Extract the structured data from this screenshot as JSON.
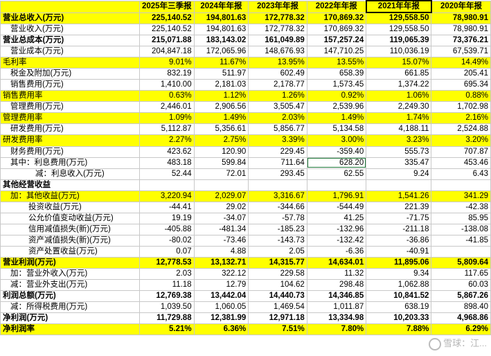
{
  "headers": [
    "",
    "2025年三季报",
    "2024年年报",
    "2023年年报",
    "2022年年报",
    "2021年年报",
    "2020年年报"
  ],
  "rows": [
    {
      "label": "营业总收入(万元)",
      "style": "hl bold",
      "indent": 0,
      "values": [
        "225,140.52",
        "194,801.63",
        "172,778.32",
        "170,869.32",
        "129,558.50",
        "78,980.91"
      ]
    },
    {
      "label": "营业收入(万元)",
      "style": "",
      "indent": 1,
      "values": [
        "225,140.52",
        "194,801.63",
        "172,778.32",
        "170,869.32",
        "129,558.50",
        "78,980.91"
      ]
    },
    {
      "label": "营业总成本(万元)",
      "style": "bold",
      "indent": 0,
      "values": [
        "215,071.88",
        "183,143.02",
        "161,049.89",
        "157,257.24",
        "119,065.39",
        "73,376.21"
      ]
    },
    {
      "label": "营业成本(万元)",
      "style": "",
      "indent": 1,
      "values": [
        "204,847.18",
        "172,065.96",
        "148,676.93",
        "147,710.25",
        "110,036.19",
        "67,539.71"
      ]
    },
    {
      "label": "毛利率",
      "style": "hl",
      "indent": 0,
      "values": [
        "9.01%",
        "11.67%",
        "13.95%",
        "13.55%",
        "15.07%",
        "14.49%"
      ]
    },
    {
      "label": "税金及附加(万元)",
      "style": "",
      "indent": 1,
      "values": [
        "832.19",
        "511.97",
        "602.49",
        "658.39",
        "661.85",
        "205.41"
      ]
    },
    {
      "label": "销售费用(万元)",
      "style": "",
      "indent": 1,
      "values": [
        "1,410.00",
        "2,181.03",
        "2,178.77",
        "1,573.45",
        "1,374.22",
        "695.34"
      ]
    },
    {
      "label": "销售费用率",
      "style": "hl",
      "indent": 0,
      "values": [
        "0.63%",
        "1.12%",
        "1.26%",
        "0.92%",
        "1.06%",
        "0.88%"
      ]
    },
    {
      "label": "管理费用(万元)",
      "style": "",
      "indent": 1,
      "values": [
        "2,446.01",
        "2,906.56",
        "3,505.47",
        "2,539.96",
        "2,249.30",
        "1,702.98"
      ]
    },
    {
      "label": "管理费用率",
      "style": "hl",
      "indent": 0,
      "values": [
        "1.09%",
        "1.49%",
        "2.03%",
        "1.49%",
        "1.74%",
        "2.16%"
      ]
    },
    {
      "label": "研发费用(万元)",
      "style": "",
      "indent": 1,
      "values": [
        "5,112.87",
        "5,356.61",
        "5,856.77",
        "5,134.58",
        "4,188.11",
        "2,524.88"
      ]
    },
    {
      "label": "研发费用率",
      "style": "hl",
      "indent": 0,
      "values": [
        "2.27%",
        "2.75%",
        "3.39%",
        "3.00%",
        "3.23%",
        "3.20%"
      ]
    },
    {
      "label": "财务费用(万元)",
      "style": "",
      "indent": 1,
      "values": [
        "423.62",
        "120.90",
        "229.45",
        "-359.40",
        "555.73",
        "707.87"
      ]
    },
    {
      "label": "其中：利息费用(万元)",
      "style": "",
      "indent": 1,
      "values": [
        "483.18",
        "599.84",
        "711.64",
        "628.20",
        "335.47",
        "453.46"
      ]
    },
    {
      "label": "减：利息收入(万元)",
      "style": "",
      "indent": 4,
      "values": [
        "52.44",
        "72.01",
        "293.45",
        "62.55",
        "9.24",
        "6.43"
      ]
    },
    {
      "label": "其他经营收益",
      "style": "bold",
      "indent": 0,
      "values": [
        "",
        "",
        "",
        "",
        "",
        ""
      ]
    },
    {
      "label": "加：其他收益(万元)",
      "style": "hl",
      "indent": 1,
      "values": [
        "3,220.94",
        "2,029.07",
        "3,316.67",
        "1,796.91",
        "1,541.26",
        "341.29"
      ]
    },
    {
      "label": "投资收益(万元)",
      "style": "",
      "indent": 3,
      "values": [
        "-44.41",
        "29.02",
        "-344.66",
        "-544.49",
        "221.39",
        "-42.38"
      ]
    },
    {
      "label": "公允价值变动收益(万元)",
      "style": "",
      "indent": 3,
      "values": [
        "19.19",
        "-34.07",
        "-57.78",
        "41.25",
        "-71.75",
        "85.95"
      ]
    },
    {
      "label": "信用减值损失(新)(万元)",
      "style": "",
      "indent": 3,
      "values": [
        "-405.88",
        "-481.34",
        "-185.23",
        "-132.96",
        "-211.18",
        "-138.08"
      ]
    },
    {
      "label": "资产减值损失(新)(万元)",
      "style": "",
      "indent": 3,
      "values": [
        "-80.02",
        "-73.46",
        "-143.73",
        "-132.42",
        "-36.86",
        "-41.85"
      ]
    },
    {
      "label": "资产处置收益(万元)",
      "style": "",
      "indent": 3,
      "values": [
        "0.07",
        "4.88",
        "2.05",
        "-6.36",
        "-40.91",
        ""
      ]
    },
    {
      "label": "营业利润(万元)",
      "style": "hl bold",
      "indent": 0,
      "values": [
        "12,778.53",
        "13,132.71",
        "14,315.77",
        "14,634.01",
        "11,895.06",
        "5,809.64"
      ]
    },
    {
      "label": "加：营业外收入(万元)",
      "style": "",
      "indent": 1,
      "values": [
        "2.03",
        "322.12",
        "229.58",
        "11.32",
        "9.34",
        "117.65"
      ]
    },
    {
      "label": "减：营业外支出(万元)",
      "style": "",
      "indent": 1,
      "values": [
        "11.18",
        "12.79",
        "104.62",
        "298.48",
        "1,062.88",
        "60.03"
      ]
    },
    {
      "label": "利润总额(万元)",
      "style": "bold",
      "indent": 0,
      "values": [
        "12,769.38",
        "13,442.04",
        "14,440.73",
        "14,346.85",
        "10,841.52",
        "5,867.26"
      ]
    },
    {
      "label": "减：所得税费用(万元)",
      "style": "",
      "indent": 1,
      "values": [
        "1,039.50",
        "1,060.05",
        "1,469.54",
        "1,011.87",
        "638.19",
        "898.40"
      ]
    },
    {
      "label": "净利润(万元)",
      "style": "bold",
      "indent": 0,
      "values": [
        "11,729.88",
        "12,381.99",
        "12,971.18",
        "13,334.98",
        "10,203.33",
        "4,968.86"
      ]
    },
    {
      "label": "净利润率",
      "style": "hl bold",
      "indent": 0,
      "values": [
        "5.21%",
        "6.36%",
        "7.51%",
        "7.80%",
        "7.88%",
        "6.29%"
      ]
    }
  ],
  "watermark": "雪球：江..."
}
